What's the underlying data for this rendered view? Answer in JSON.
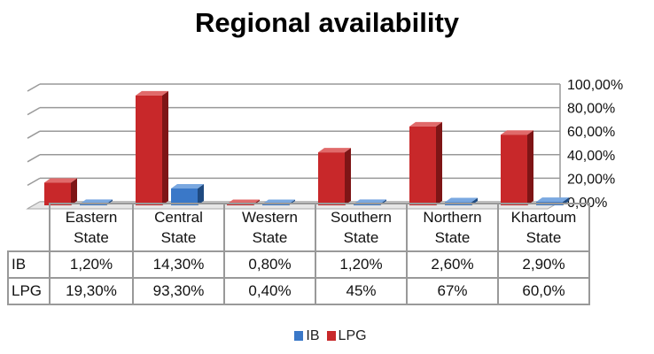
{
  "chart_data": {
    "type": "bar",
    "title": "Regional availability",
    "categories": [
      "Eastern State",
      "Central State",
      "Western State",
      "Southern State",
      "Northern State",
      "Khartoum State"
    ],
    "category_lines": [
      [
        "Eastern",
        "State"
      ],
      [
        "Central",
        "State"
      ],
      [
        "Western",
        "State"
      ],
      [
        "Southern",
        "State"
      ],
      [
        "Northern",
        "State"
      ],
      [
        "Khartoum",
        "State"
      ]
    ],
    "series": [
      {
        "name": "IB",
        "color": "#3a78c8",
        "values": [
          1.2,
          14.3,
          0.8,
          1.2,
          2.6,
          2.9
        ],
        "labels": [
          "1,20%",
          "14,30%",
          "0,80%",
          "1,20%",
          "2,60%",
          "2,90%"
        ]
      },
      {
        "name": "LPG",
        "color": "#c8282a",
        "values": [
          19.3,
          93.3,
          0.4,
          45,
          67,
          60
        ],
        "labels": [
          "19,30%",
          "93,30%",
          "0,40%",
          "45%",
          "67%",
          "60,0%"
        ]
      }
    ],
    "ylim": [
      0,
      100
    ],
    "yticks": [
      "0,00%",
      "20,00%",
      "40,00%",
      "60,00%",
      "80,00%",
      "100,00%"
    ],
    "grid": true,
    "legend": "bottom"
  }
}
